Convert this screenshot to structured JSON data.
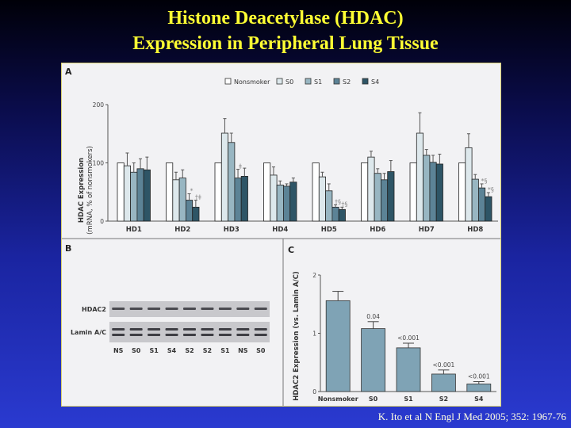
{
  "slide": {
    "title_line1": "Histone Deacetylase (HDAC)",
    "title_line2": "Expression in Peripheral Lung Tissue",
    "citation": "K. Ito et al N Engl J Med 2005; 352: 1967-76"
  },
  "colors": {
    "title": "#ffff33",
    "Nonsmoker": "#ffffff",
    "S0": "#dde8ec",
    "S1": "#98b6c2",
    "S2": "#5c8396",
    "S4": "#2e5566",
    "panel_c_bar": "#7fa3b5"
  },
  "chart_data": [
    {
      "panel": "A",
      "type": "bar",
      "title": "",
      "xlabel": "",
      "ylabel_line1": "HDAC Expression",
      "ylabel_line2": "(mRNA, % of nonsmokers)",
      "ylim": [
        0,
        200
      ],
      "yticks": [
        "0",
        "100",
        "200"
      ],
      "legend_position": "top",
      "categories": [
        "HD1",
        "HD2",
        "HD3",
        "HD4",
        "HD5",
        "HD6",
        "HD7",
        "HD8"
      ],
      "series": [
        {
          "name": "Nonsmoker",
          "values": [
            100,
            100,
            100,
            100,
            100,
            100,
            100,
            100
          ],
          "errors": [
            0,
            0,
            0,
            0,
            0,
            0,
            0,
            0
          ]
        },
        {
          "name": "S0",
          "values": [
            95,
            71,
            151,
            79,
            76,
            110,
            151,
            126
          ],
          "errors": [
            22,
            13,
            25,
            14,
            8,
            10,
            35,
            24
          ]
        },
        {
          "name": "S1",
          "values": [
            84,
            74,
            135,
            62,
            52,
            82,
            113,
            72
          ],
          "errors": [
            16,
            14,
            16,
            7,
            12,
            8,
            10,
            8
          ]
        },
        {
          "name": "S2",
          "values": [
            90,
            36,
            74,
            60,
            24,
            71,
            101,
            57
          ],
          "errors": [
            17,
            11,
            15,
            4,
            4,
            11,
            12,
            7
          ]
        },
        {
          "name": "S4",
          "values": [
            88,
            24,
            77,
            67,
            20,
            85,
            98,
            42
          ],
          "errors": [
            22,
            12,
            14,
            7,
            4,
            19,
            17,
            7
          ]
        }
      ],
      "annotations": [
        {
          "category": "HD2",
          "series": "S2",
          "text": "*"
        },
        {
          "category": "HD2",
          "series": "S4",
          "text": "†‡"
        },
        {
          "category": "HD3",
          "series": "S2",
          "text": "‡"
        },
        {
          "category": "HD5",
          "series": "S2",
          "text": "†§"
        },
        {
          "category": "HD5",
          "series": "S4",
          "text": "†§"
        },
        {
          "category": "HD8",
          "series": "S2",
          "text": "*§"
        },
        {
          "category": "HD8",
          "series": "S4",
          "text": "*§"
        }
      ]
    },
    {
      "panel": "C",
      "type": "bar",
      "title": "",
      "xlabel": "",
      "ylabel": "HDAC2 Expression (vs. Lamin A/C)",
      "ylim": [
        0,
        2
      ],
      "yticks": [
        "0",
        "1",
        "2"
      ],
      "categories": [
        "Nonsmoker",
        "S0",
        "S1",
        "S2",
        "S4"
      ],
      "values": [
        1.56,
        1.08,
        0.75,
        0.3,
        0.13
      ],
      "errors": [
        0.16,
        0.12,
        0.08,
        0.07,
        0.04
      ],
      "labels": [
        "",
        "0.04",
        "<0.001",
        "<0.001",
        "<0.001"
      ]
    }
  ],
  "panel_b": {
    "label": "B",
    "row_labels": [
      "HDAC2",
      "Lamin A/C"
    ],
    "lanes": [
      "NS",
      "S0",
      "S1",
      "S4",
      "S2",
      "S2",
      "S1",
      "NS",
      "S0"
    ]
  }
}
